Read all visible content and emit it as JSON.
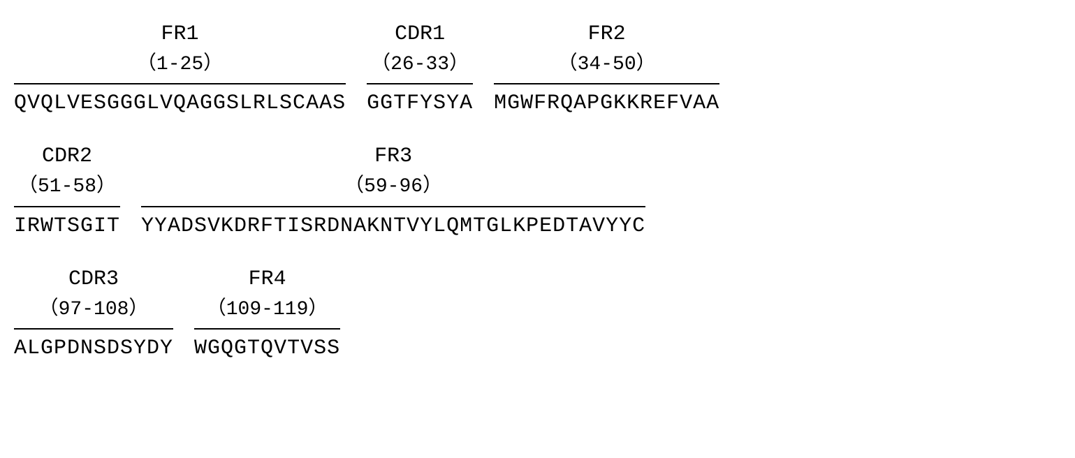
{
  "background_color": "#ffffff",
  "text_color": "#000000",
  "font_family": "Courier New",
  "label_fontsize": 30,
  "range_fontsize": 28,
  "sequence_fontsize": 30,
  "rows": [
    {
      "segments": [
        {
          "label": "FR1",
          "range": "（1-25）",
          "sequence": "QVQLVESGGGLVQAGGSLRLSCAAS"
        },
        {
          "label": "CDR1",
          "range": "（26-33）",
          "sequence": "GGTFYSYA"
        },
        {
          "label": "FR2",
          "range": "（34-50）",
          "sequence": "MGWFRQAPGKKREFVAA"
        }
      ]
    },
    {
      "segments": [
        {
          "label": "CDR2",
          "range": "（51-58）",
          "sequence": "IRWTSGIT"
        },
        {
          "label": "FR3",
          "range": "（59-96）",
          "sequence": "YYADSVKDRFTISRDNAKNTVYLQMTGLKPEDTAVYYC"
        }
      ]
    },
    {
      "segments": [
        {
          "label": "CDR3",
          "range": "（97-108）",
          "sequence": "ALGPDNSDSYDY"
        },
        {
          "label": "FR4",
          "range": "（109-119）",
          "sequence": "WGQGTQVTVSS"
        }
      ]
    }
  ]
}
